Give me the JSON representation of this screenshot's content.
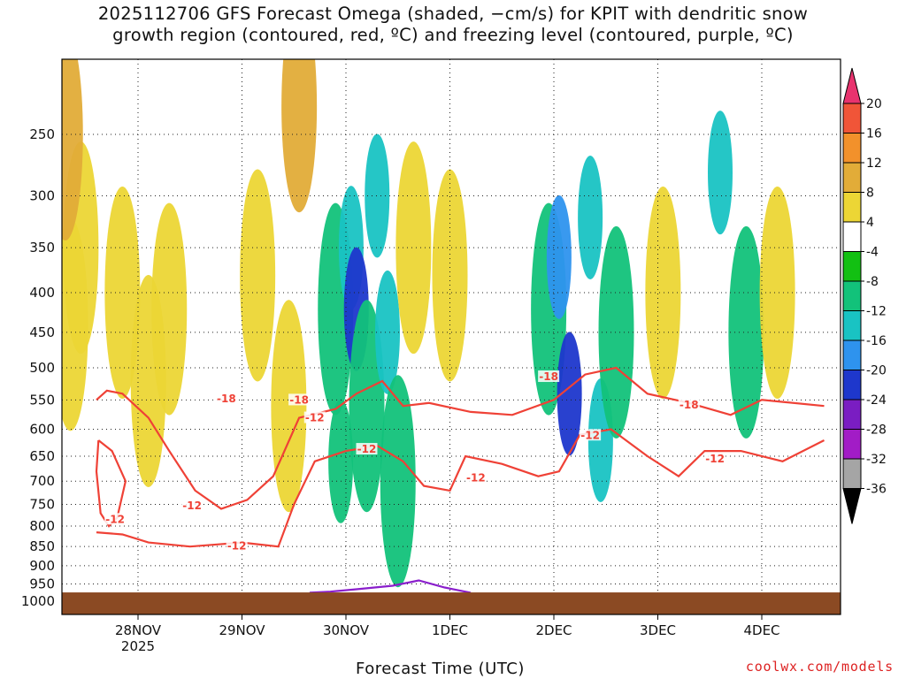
{
  "chart_data": {
    "type": "heatmap",
    "title": "2025112706 GFS Forecast Omega (shaded, −cm/s) for KPIT with dendritic snow\ngrowth region (contoured, red, ºC) and freezing level (contoured, purple, ºC)",
    "xlabel": "Forecast Time (UTC)",
    "ylabel": "",
    "x_ticks": [
      "28NOV",
      "29NOV",
      "30NOV",
      "1DEC",
      "2DEC",
      "3DEC",
      "4DEC"
    ],
    "x_year_label": "2025",
    "y_ticks": [
      250,
      300,
      350,
      400,
      450,
      500,
      550,
      600,
      650,
      700,
      750,
      800,
      850,
      900,
      950,
      1000
    ],
    "y_axis": {
      "scale": "log-pressure",
      "top_hPa": 200,
      "bottom_hPa": 1040
    },
    "colorbar": {
      "levels": [
        20,
        16,
        12,
        8,
        4,
        -4,
        -8,
        -12,
        -16,
        -20,
        -24,
        -28,
        -32,
        -36
      ],
      "colors": [
        "#e8336e",
        "#f05538",
        "#f2912b",
        "#e2ac38",
        "#ecd635",
        "#ffffff",
        "#12c012",
        "#12c27a",
        "#19c3c3",
        "#2e93ee",
        "#1e37cc",
        "#7a1dc2",
        "#a21cc6",
        "#a5a5a5",
        "#000000"
      ]
    },
    "contours": [
      {
        "name": "dendritic snow growth region",
        "color": "#ef4136",
        "levels": [
          -12,
          -18
        ]
      },
      {
        "name": "freezing level",
        "color": "#8a1fcc",
        "levels": [
          0
        ]
      }
    ],
    "contour_labels": [
      "-18",
      "-12",
      "-18",
      "-12",
      "-12",
      "-12",
      "-18",
      "-12",
      "-18",
      "-12",
      "-12",
      "-12"
    ],
    "shading_cells": [
      {
        "t": 0.35,
        "p": 440,
        "v": 6
      },
      {
        "t": 0.45,
        "p": 350,
        "v": 5
      },
      {
        "t": 0.3,
        "p": 250,
        "v": 10
      },
      {
        "t": 0.85,
        "p": 400,
        "v": 5
      },
      {
        "t": 1.1,
        "p": 520,
        "v": 5
      },
      {
        "t": 1.3,
        "p": 420,
        "v": 5
      },
      {
        "t": 2.15,
        "p": 380,
        "v": 6
      },
      {
        "t": 2.45,
        "p": 560,
        "v": 5
      },
      {
        "t": 2.55,
        "p": 230,
        "v": 9
      },
      {
        "t": 2.9,
        "p": 420,
        "v": -9
      },
      {
        "t": 2.95,
        "p": 660,
        "v": -12
      },
      {
        "t": 3.05,
        "p": 350,
        "v": -13
      },
      {
        "t": 3.1,
        "p": 420,
        "v": -24
      },
      {
        "t": 3.2,
        "p": 560,
        "v": -9
      },
      {
        "t": 3.3,
        "p": 300,
        "v": -14
      },
      {
        "t": 3.4,
        "p": 450,
        "v": -16
      },
      {
        "t": 3.5,
        "p": 700,
        "v": -11
      },
      {
        "t": 3.65,
        "p": 350,
        "v": 5
      },
      {
        "t": 4.0,
        "p": 380,
        "v": 5
      },
      {
        "t": 4.95,
        "p": 420,
        "v": -9
      },
      {
        "t": 5.05,
        "p": 360,
        "v": -20
      },
      {
        "t": 5.15,
        "p": 540,
        "v": -21
      },
      {
        "t": 5.35,
        "p": 320,
        "v": -15
      },
      {
        "t": 5.45,
        "p": 620,
        "v": -13
      },
      {
        "t": 5.6,
        "p": 450,
        "v": -9
      },
      {
        "t": 6.05,
        "p": 400,
        "v": 5
      },
      {
        "t": 6.6,
        "p": 280,
        "v": -13
      },
      {
        "t": 6.85,
        "p": 450,
        "v": -9
      },
      {
        "t": 7.15,
        "p": 400,
        "v": 6
      }
    ],
    "grid": true
  },
  "credit": "coolwx.com/models"
}
